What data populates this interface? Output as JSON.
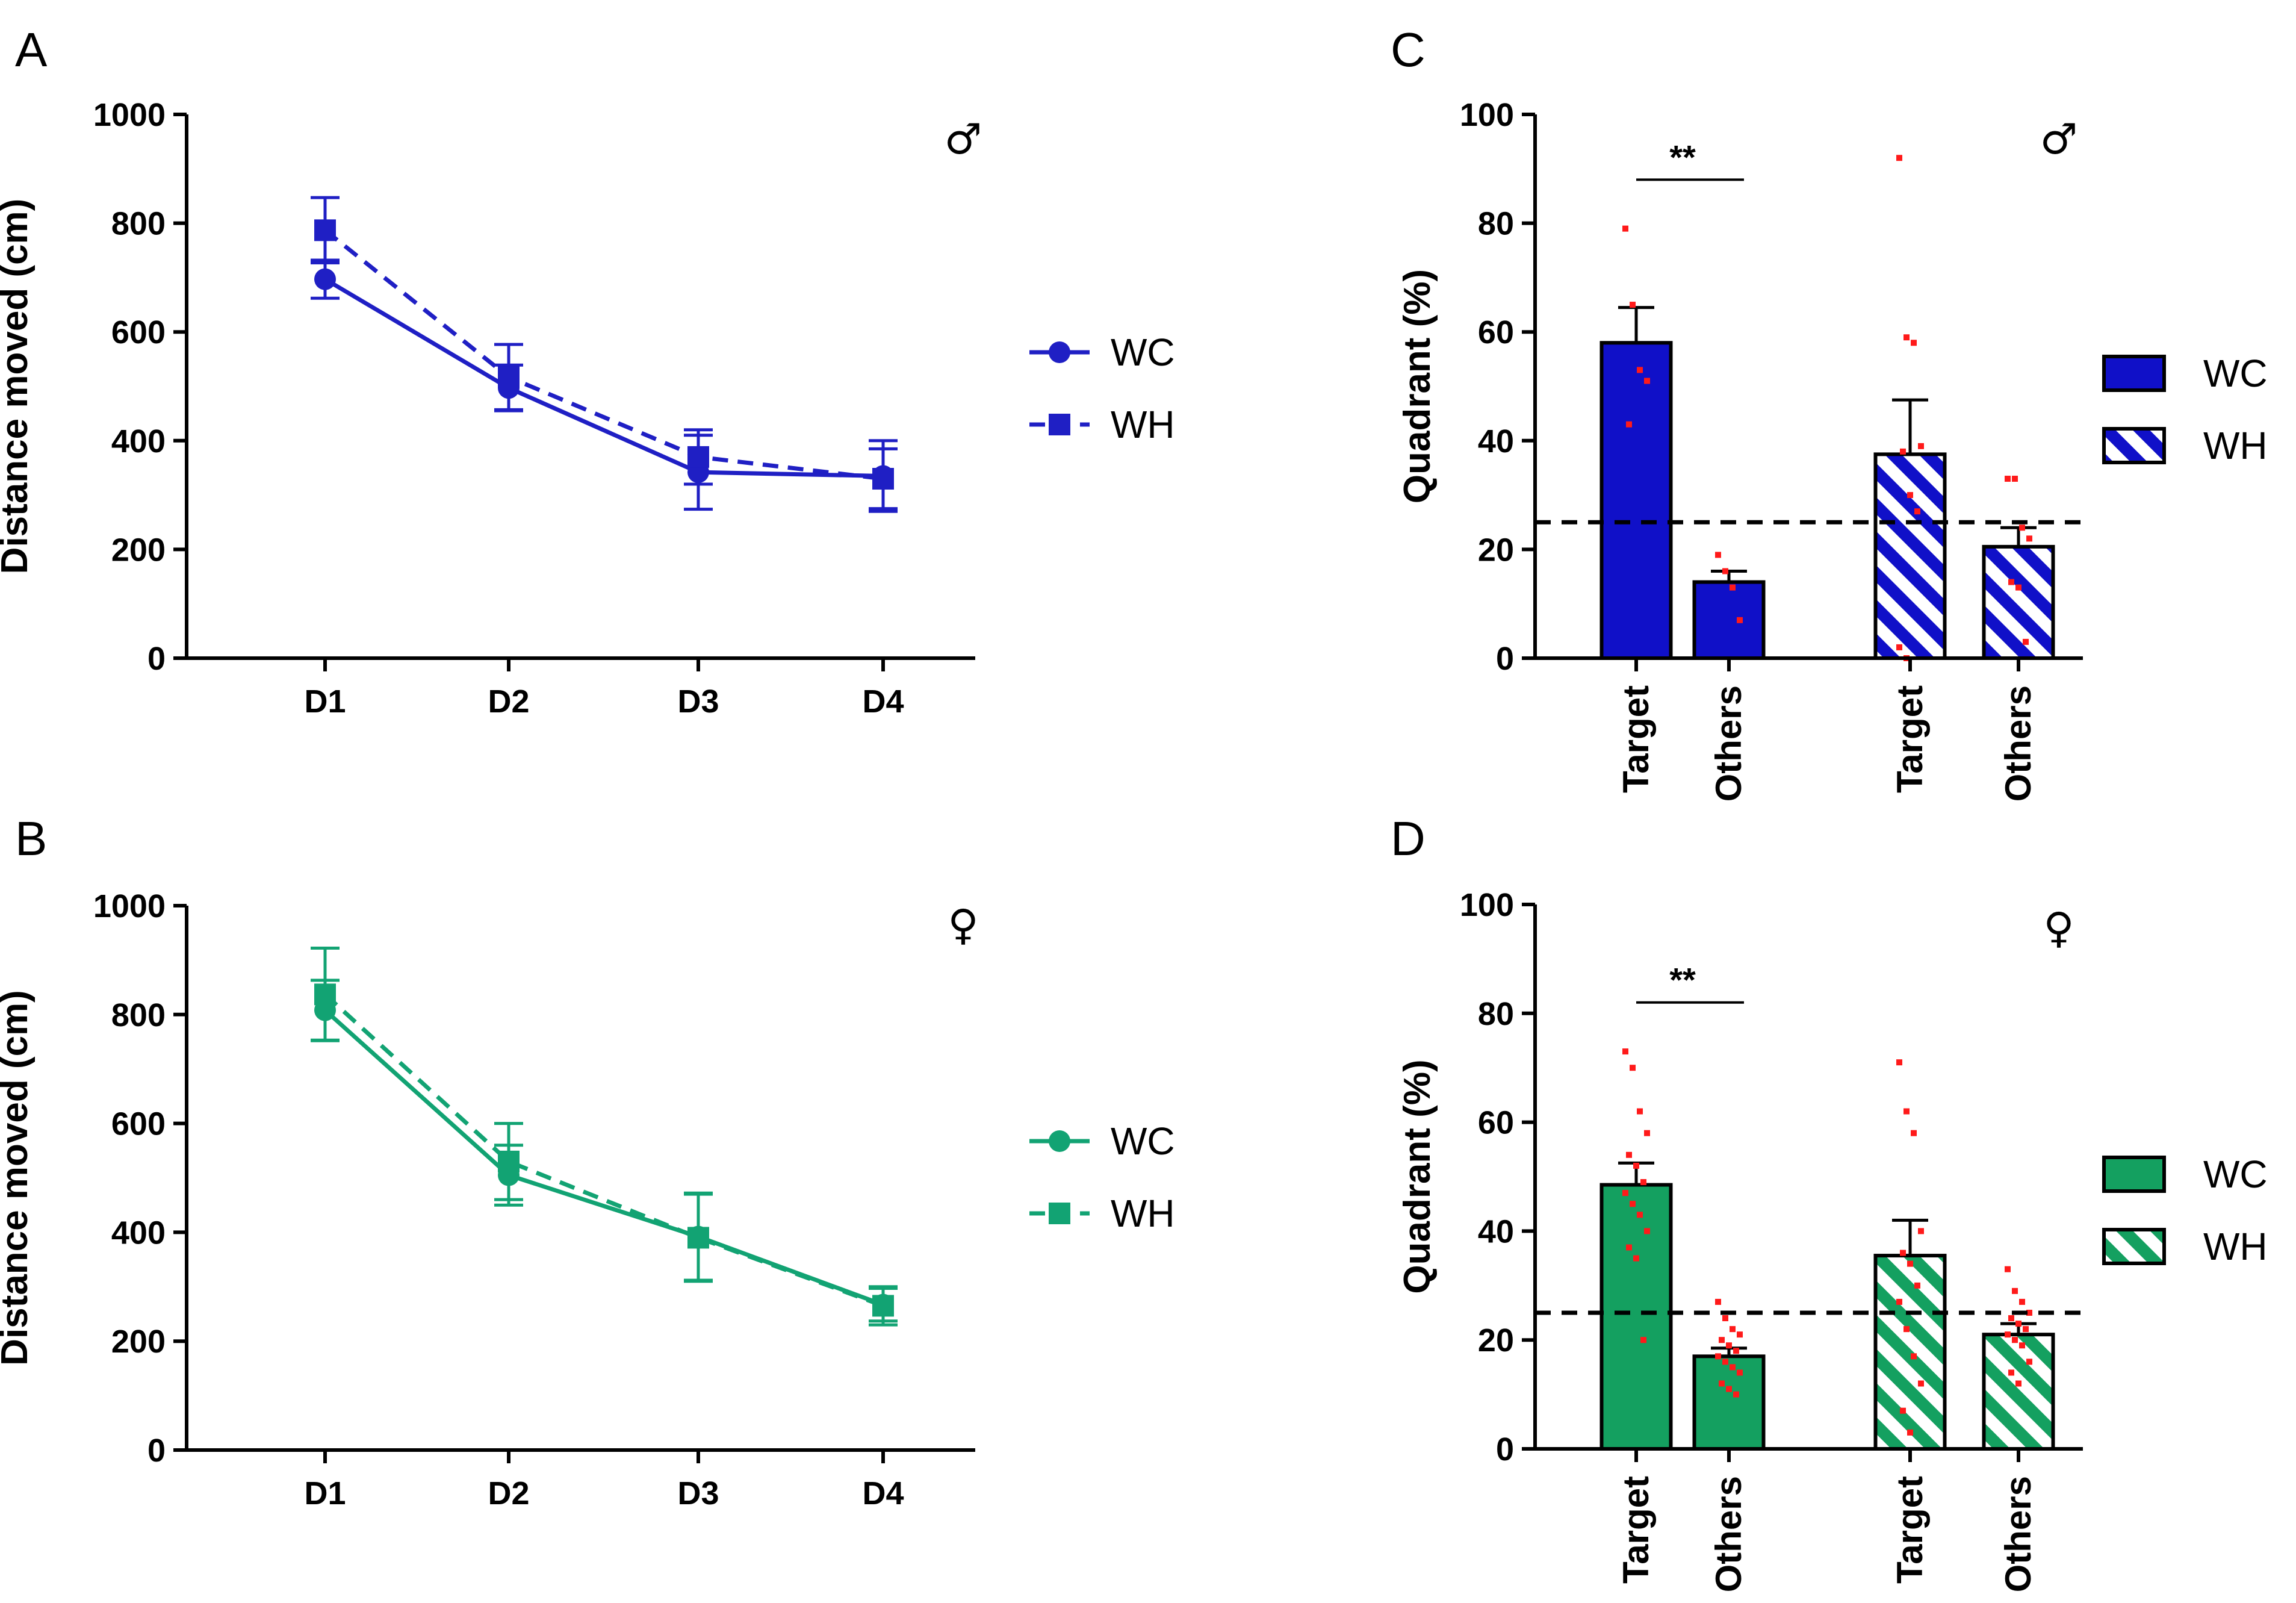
{
  "figure": {
    "panels": [
      {
        "letter": "A",
        "symbol": "♂"
      },
      {
        "letter": "B",
        "symbol": "♀"
      },
      {
        "letter": "C",
        "symbol": "♂"
      },
      {
        "letter": "D",
        "symbol": "♀"
      }
    ]
  },
  "chart_data": [
    {
      "panel": "A",
      "type": "line",
      "ylabel": "Distance moved (cm)",
      "xlabel": "",
      "ylim": [
        0,
        1000
      ],
      "yticks": [
        0,
        200,
        400,
        600,
        800,
        1000
      ],
      "categories": [
        "D1",
        "D2",
        "D3",
        "D4"
      ],
      "color": "#1f1fc4",
      "series": [
        {
          "name": "WC",
          "marker": "circle",
          "dash": "solid",
          "values": [
            697,
            497,
            342,
            335
          ],
          "errors": [
            35,
            42,
            68,
            65
          ]
        },
        {
          "name": "WH",
          "marker": "square",
          "dash": "dashed",
          "values": [
            787,
            517,
            370,
            330
          ],
          "errors": [
            60,
            60,
            50,
            55
          ]
        }
      ],
      "legend": {
        "position": "right"
      }
    },
    {
      "panel": "B",
      "type": "line",
      "ylabel": "Distance moved (cm)",
      "xlabel": "",
      "ylim": [
        0,
        1000
      ],
      "yticks": [
        0,
        200,
        400,
        600,
        800,
        1000
      ],
      "categories": [
        "D1",
        "D2",
        "D3",
        "D4"
      ],
      "color": "#12a373",
      "series": [
        {
          "name": "WC",
          "marker": "circle",
          "dash": "solid",
          "values": [
            808,
            505,
            392,
            267
          ],
          "errors": [
            55,
            55,
            80,
            30
          ]
        },
        {
          "name": "WH",
          "marker": "square",
          "dash": "dashed",
          "values": [
            837,
            530,
            390,
            265
          ],
          "errors": [
            85,
            70,
            80,
            35
          ]
        }
      ],
      "legend": {
        "position": "right"
      }
    },
    {
      "panel": "C",
      "type": "bar",
      "ylabel": "Quadrant (%)",
      "ylim": [
        0,
        100
      ],
      "yticks": [
        0,
        20,
        40,
        60,
        80,
        100
      ],
      "categories": [
        "Target",
        "Others",
        "Target",
        "Others"
      ],
      "color": "#1010c8",
      "groups": [
        "WC",
        "WC",
        "WH",
        "WH"
      ],
      "values": [
        58,
        14,
        37.5,
        20.5
      ],
      "errors": [
        6.5,
        2,
        10,
        3.5
      ],
      "points": [
        [
          79,
          65,
          53,
          51,
          43
        ],
        [
          19,
          16,
          13,
          7
        ],
        [
          92,
          59,
          58,
          39,
          38,
          30,
          27,
          2,
          0
        ],
        [
          33,
          33,
          24,
          22,
          14,
          13,
          3
        ]
      ],
      "reference_line": 25,
      "significance": {
        "label": "**",
        "between": [
          0,
          1
        ],
        "y": 88
      },
      "legend": {
        "position": "right",
        "entries": [
          "WC",
          "WH"
        ]
      }
    },
    {
      "panel": "D",
      "type": "bar",
      "ylabel": "Quadrant (%)",
      "ylim": [
        0,
        100
      ],
      "yticks": [
        0,
        20,
        40,
        60,
        80,
        100
      ],
      "categories": [
        "Target",
        "Others",
        "Target",
        "Others"
      ],
      "color": "#14a060",
      "groups": [
        "WC",
        "WC",
        "WH",
        "WH"
      ],
      "values": [
        48.5,
        17,
        35.5,
        21
      ],
      "errors": [
        4,
        1.5,
        6.5,
        2
      ],
      "points": [
        [
          73,
          70,
          62,
          58,
          54,
          52,
          49,
          47,
          45,
          43,
          40,
          37,
          35,
          20
        ],
        [
          27,
          24,
          22,
          21,
          20,
          19,
          18,
          17,
          16,
          15,
          14,
          12,
          11,
          10
        ],
        [
          71,
          62,
          58,
          40,
          36,
          34,
          30,
          27,
          22,
          17,
          12,
          7,
          3
        ],
        [
          33,
          29,
          27,
          25,
          24,
          23,
          22,
          21,
          20,
          19,
          16,
          14,
          12
        ]
      ],
      "reference_line": 25,
      "significance": {
        "label": "**",
        "between": [
          0,
          1
        ],
        "y": 82
      },
      "legend": {
        "position": "right",
        "entries": [
          "WC",
          "WH"
        ]
      }
    }
  ]
}
